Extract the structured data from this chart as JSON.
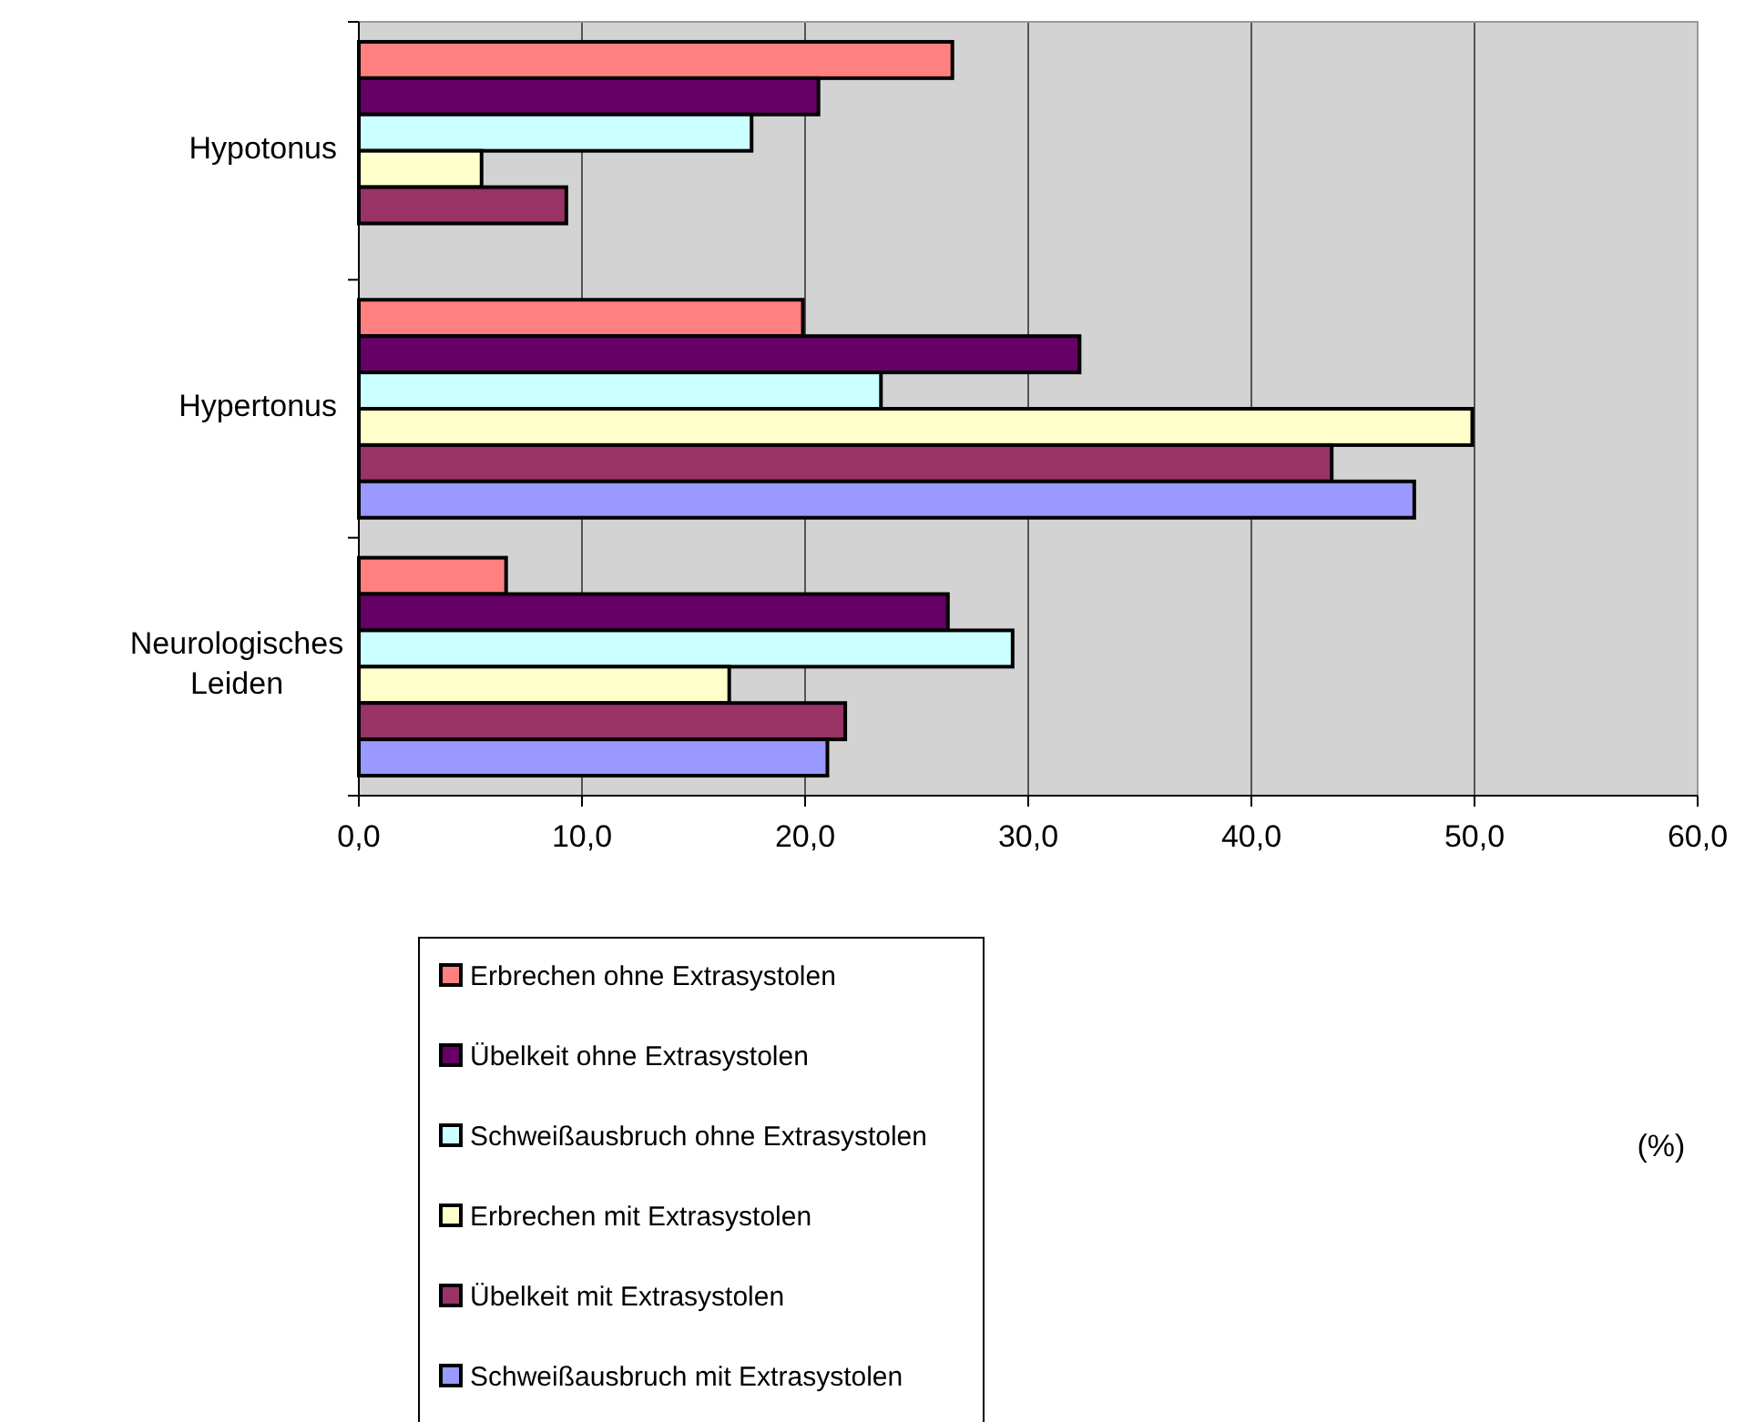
{
  "chart_data": {
    "type": "bar",
    "orientation": "horizontal",
    "annotations": [
      "(%)"
    ],
    "categories": [
      "Hypotonus",
      "Hypertonus",
      "Neurologisches Leiden"
    ],
    "series": [
      {
        "name": "Erbrechen ohne Extrasystolen",
        "color": "#ff8080",
        "values": [
          26.6,
          19.9,
          6.6
        ]
      },
      {
        "name": "Übelkeit ohne Extrasystolen",
        "color": "#660066",
        "values": [
          20.6,
          32.3,
          26.4
        ]
      },
      {
        "name": "Schweißausbruch ohne Extrasystolen",
        "color": "#ccffff",
        "values": [
          17.6,
          23.4,
          29.3
        ]
      },
      {
        "name": "Erbrechen mit Extrasystolen",
        "color": "#ffffcc",
        "values": [
          5.5,
          49.9,
          16.6
        ]
      },
      {
        "name": "Übelkeit mit Extrasystolen",
        "color": "#993366",
        "values": [
          9.3,
          43.6,
          21.8
        ]
      },
      {
        "name": "Schweißausbruch mit Extrasystolen",
        "color": "#9999ff",
        "values": [
          null,
          47.3,
          21.0
        ]
      }
    ],
    "xlim": [
      0,
      60
    ],
    "xticks": [
      {
        "value": 0,
        "label": "0,0"
      },
      {
        "value": 10,
        "label": "10,0"
      },
      {
        "value": 20,
        "label": "20,0"
      },
      {
        "value": 30,
        "label": "30,0"
      },
      {
        "value": 40,
        "label": "40,0"
      },
      {
        "value": 50,
        "label": "50,0"
      },
      {
        "value": 60,
        "label": "60,0"
      }
    ],
    "grid": "x",
    "legend": "bottom"
  }
}
